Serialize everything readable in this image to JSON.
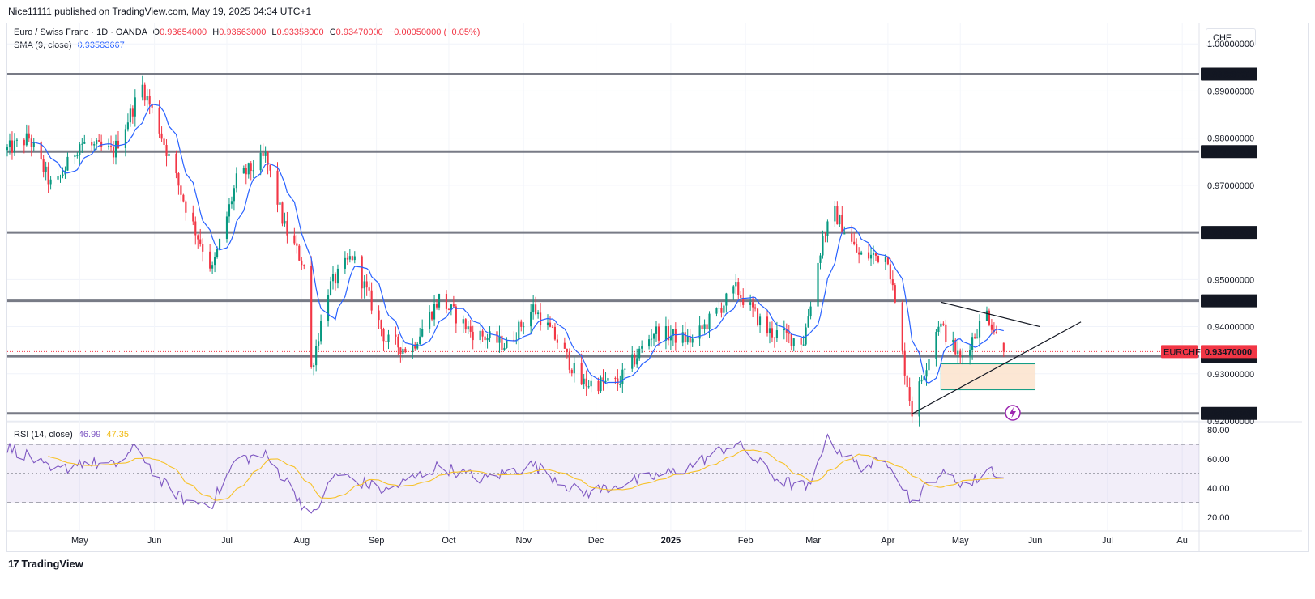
{
  "header": {
    "publisher": "Nice11111 published on TradingView.com, May 19, 2025 04:34 UTC+1"
  },
  "legend": {
    "symbol": "Euro / Swiss Franc · 1D · OANDA",
    "open_label": "O",
    "open": "0.93654000",
    "high_label": "H",
    "high": "0.93663000",
    "low_label": "L",
    "low": "0.93358000",
    "close_label": "C",
    "close": "0.93470000",
    "change": "−0.00050000 (−0.05%)",
    "sma_label": "SMA (9, close)",
    "sma_value": "0.93583667",
    "rsi_label": "RSI (14, close)",
    "rsi_value": "46.99",
    "rsi_ma_value": "47.35"
  },
  "currency": "CHF",
  "brand": {
    "logo": "17",
    "name": "TradingView"
  },
  "colors": {
    "up": "#089981",
    "down": "#f23645",
    "sma": "#2962ff",
    "rsi": "#7e57c2",
    "rsi_ma": "#f7c229",
    "level": "#787b86",
    "label_bg": "#131722",
    "current_bg": "#f23645"
  },
  "chart_data": [
    {
      "type": "candlestick",
      "title": "Euro / Swiss Franc · 1D · OANDA",
      "ylim": [
        0.92,
        1.0045
      ],
      "y_ticks": [
        "1.00000000",
        "0.99000000",
        "0.98000000",
        "0.97000000",
        "0.95000000",
        "0.94000000",
        "0.93000000",
        "0.92000000"
      ],
      "x_ticks": [
        "May",
        "Jun",
        "Jul",
        "Aug",
        "Sep",
        "Oct",
        "Nov",
        "Dec",
        "2025",
        "Feb",
        "Mar",
        "Apr",
        "May",
        "Jun",
        "Jul",
        "Au"
      ],
      "series_anchor_close": [
        {
          "date": "2024-04-01",
          "close": 0.9775
        },
        {
          "date": "2024-04-10",
          "close": 0.98
        },
        {
          "date": "2024-04-20",
          "close": 0.969
        },
        {
          "date": "2024-05-01",
          "close": 0.979
        },
        {
          "date": "2024-05-15",
          "close": 0.977
        },
        {
          "date": "2024-05-27",
          "close": 0.991
        },
        {
          "date": "2024-06-03",
          "close": 0.982
        },
        {
          "date": "2024-06-15",
          "close": 0.964
        },
        {
          "date": "2024-06-25",
          "close": 0.952
        },
        {
          "date": "2024-07-05",
          "close": 0.971
        },
        {
          "date": "2024-07-17",
          "close": 0.976
        },
        {
          "date": "2024-07-25",
          "close": 0.961
        },
        {
          "date": "2024-08-02",
          "close": 0.953
        },
        {
          "date": "2024-08-05",
          "close": 0.931
        },
        {
          "date": "2024-08-12",
          "close": 0.948
        },
        {
          "date": "2024-08-22",
          "close": 0.955
        },
        {
          "date": "2024-09-05",
          "close": 0.937
        },
        {
          "date": "2024-09-15",
          "close": 0.935
        },
        {
          "date": "2024-09-27",
          "close": 0.946
        },
        {
          "date": "2024-10-10",
          "close": 0.939
        },
        {
          "date": "2024-10-25",
          "close": 0.936
        },
        {
          "date": "2024-11-05",
          "close": 0.944
        },
        {
          "date": "2024-11-15",
          "close": 0.937
        },
        {
          "date": "2024-11-25",
          "close": 0.928
        },
        {
          "date": "2024-12-10",
          "close": 0.928
        },
        {
          "date": "2024-12-25",
          "close": 0.939
        },
        {
          "date": "2025-01-10",
          "close": 0.937
        },
        {
          "date": "2025-01-28",
          "close": 0.948
        },
        {
          "date": "2025-02-10",
          "close": 0.939
        },
        {
          "date": "2025-02-25",
          "close": 0.937
        },
        {
          "date": "2025-03-05",
          "close": 0.959
        },
        {
          "date": "2025-03-10",
          "close": 0.964
        },
        {
          "date": "2025-03-20",
          "close": 0.955
        },
        {
          "date": "2025-04-01",
          "close": 0.955
        },
        {
          "date": "2025-04-07",
          "close": 0.934
        },
        {
          "date": "2025-04-11",
          "close": 0.922
        },
        {
          "date": "2025-04-22",
          "close": 0.941
        },
        {
          "date": "2025-05-01",
          "close": 0.933
        },
        {
          "date": "2025-05-12",
          "close": 0.943
        },
        {
          "date": "2025-05-19",
          "close": 0.9347
        }
      ],
      "horizontal_levels": [
        "0.99358731",
        "0.97714511",
        "0.96000000",
        "0.94549000",
        "0.93371287",
        "0.92158542"
      ],
      "current_price": "0.93470000",
      "current_label": "EURCHF",
      "trendlines": [
        {
          "from": {
            "date": "2025-04-11",
            "price": 0.9215
          },
          "to": {
            "date": "2025-06-20",
            "price": 0.941
          }
        },
        {
          "from": {
            "date": "2025-04-23",
            "price": 0.9452
          },
          "to": {
            "date": "2025-06-03",
            "price": 0.94
          }
        }
      ],
      "zone": {
        "from_date": "2025-04-23",
        "to_date": "2025-06-01",
        "price_top": 0.9321,
        "price_bottom": 0.9266
      },
      "sma": {
        "period": 9,
        "last": "0.93583667"
      }
    },
    {
      "type": "line",
      "title": "RSI (14, close)",
      "ylim": [
        11,
        85
      ],
      "y_ticks": [
        "80.00",
        "60.00",
        "40.00",
        "20.00"
      ],
      "bands": [
        70,
        50,
        30
      ],
      "series_anchor": [
        {
          "date": "2024-04-01",
          "rsi": 68
        },
        {
          "date": "2024-04-10",
          "rsi": 62
        },
        {
          "date": "2024-04-20",
          "rsi": 50
        },
        {
          "date": "2024-05-01",
          "rsi": 58
        },
        {
          "date": "2024-05-15",
          "rsi": 55
        },
        {
          "date": "2024-05-25",
          "rsi": 68
        },
        {
          "date": "2024-06-03",
          "rsi": 45
        },
        {
          "date": "2024-06-15",
          "rsi": 30
        },
        {
          "date": "2024-06-25",
          "rsi": 30
        },
        {
          "date": "2024-07-05",
          "rsi": 60
        },
        {
          "date": "2024-07-17",
          "rsi": 62
        },
        {
          "date": "2024-07-28",
          "rsi": 40
        },
        {
          "date": "2024-08-05",
          "rsi": 19
        },
        {
          "date": "2024-08-15",
          "rsi": 50
        },
        {
          "date": "2024-09-05",
          "rsi": 38
        },
        {
          "date": "2024-09-27",
          "rsi": 55
        },
        {
          "date": "2024-10-15",
          "rsi": 46
        },
        {
          "date": "2024-11-05",
          "rsi": 56
        },
        {
          "date": "2024-11-25",
          "rsi": 36
        },
        {
          "date": "2024-12-10",
          "rsi": 42
        },
        {
          "date": "2025-01-05",
          "rsi": 52
        },
        {
          "date": "2025-01-28",
          "rsi": 71
        },
        {
          "date": "2025-02-15",
          "rsi": 45
        },
        {
          "date": "2025-02-28",
          "rsi": 40
        },
        {
          "date": "2025-03-06",
          "rsi": 74
        },
        {
          "date": "2025-03-20",
          "rsi": 55
        },
        {
          "date": "2025-04-02",
          "rsi": 58
        },
        {
          "date": "2025-04-11",
          "rsi": 30
        },
        {
          "date": "2025-04-22",
          "rsi": 50
        },
        {
          "date": "2025-05-05",
          "rsi": 42
        },
        {
          "date": "2025-05-13",
          "rsi": 54
        },
        {
          "date": "2025-05-19",
          "rsi": 46.99
        }
      ],
      "ma_last": "47.35"
    }
  ]
}
